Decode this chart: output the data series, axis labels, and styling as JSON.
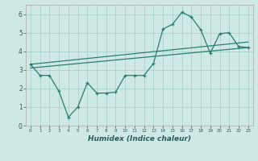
{
  "xlabel": "Humidex (Indice chaleur)",
  "background_color": "#cde8e5",
  "grid_color": "#b0d4d0",
  "line_color": "#2e7d6e",
  "xlim": [
    -0.5,
    23.5
  ],
  "ylim": [
    0,
    6.5
  ],
  "xticks": [
    0,
    1,
    2,
    3,
    4,
    5,
    6,
    7,
    8,
    9,
    10,
    11,
    12,
    13,
    14,
    15,
    16,
    17,
    18,
    19,
    20,
    21,
    22,
    23
  ],
  "yticks": [
    0,
    1,
    2,
    3,
    4,
    5,
    6
  ],
  "line1_x": [
    0,
    1,
    2,
    3,
    4,
    5,
    6,
    7,
    8,
    9,
    10,
    11,
    12,
    13,
    14,
    15,
    16,
    17,
    18,
    19,
    20,
    21,
    22,
    23
  ],
  "line1_y": [
    3.3,
    2.7,
    2.7,
    1.85,
    0.45,
    1.0,
    2.3,
    1.75,
    1.75,
    1.8,
    2.7,
    2.7,
    2.7,
    3.35,
    5.2,
    5.45,
    6.1,
    5.85,
    5.15,
    3.9,
    4.95,
    5.0,
    4.25,
    4.2
  ],
  "line2_x": [
    0,
    23
  ],
  "line2_y": [
    3.1,
    4.2
  ],
  "line3_x": [
    0,
    23
  ],
  "line3_y": [
    3.3,
    4.5
  ]
}
